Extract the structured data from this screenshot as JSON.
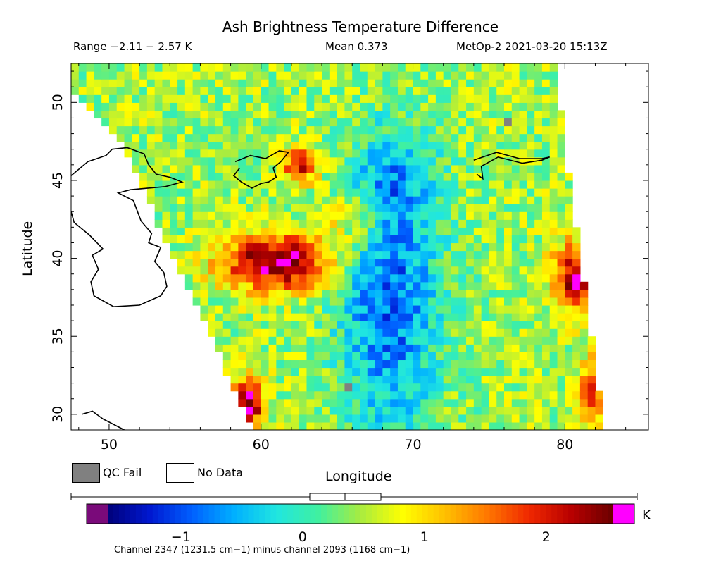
{
  "header": {
    "title": "Ash Brightness Temperature Difference",
    "range_text": "Range −2.11 − 2.57 K",
    "mean_text": "Mean 0.373",
    "satellite_text": "MetOp-2 2021-03-20 15:13Z"
  },
  "legend": {
    "qc_fail_label": "QC Fail",
    "no_data_label": "No Data",
    "qc_fail_color": "#808080",
    "no_data_color": "#ffffff"
  },
  "colorbar": {
    "caption": "Channel 2347 (1231.5 cm−1) minus channel 2093 (1168 cm−1)",
    "unit": "K",
    "min": -1.6,
    "max": 2.55,
    "ticks": [
      {
        "value": -1,
        "label": "−1"
      },
      {
        "value": 0,
        "label": "0"
      },
      {
        "value": 1,
        "label": "1"
      },
      {
        "value": 2,
        "label": "2"
      }
    ],
    "under_color": "#7a0a7a",
    "over_color": "#ff00ff",
    "colors": [
      "#00007a",
      "#0018d0",
      "#0060ff",
      "#00b0ff",
      "#20e6e0",
      "#40f0a0",
      "#a8ec40",
      "#ffff00",
      "#ffc000",
      "#ff7800",
      "#f02800",
      "#b80000",
      "#6a0000"
    ]
  },
  "chart_data": {
    "type": "heatmap",
    "title": "Ash Brightness Temperature Difference",
    "xlabel": "Longitude",
    "ylabel": "Latitude",
    "xlim": [
      47.5,
      85.5
    ],
    "ylim": [
      29.0,
      52.5
    ],
    "xticks": [
      50,
      60,
      70,
      80
    ],
    "yticks": [
      30,
      35,
      40,
      45,
      50
    ],
    "value_range": [
      -2.11,
      2.57
    ],
    "mean": 0.373,
    "units": "K",
    "swath": {
      "left_edge": [
        [
          47.5,
          50.7
        ],
        [
          51.0,
          47.0
        ],
        [
          59.5,
          29.0
        ]
      ],
      "right_edge": [
        [
          79.3,
          52.5
        ],
        [
          82.6,
          29.0
        ]
      ]
    },
    "grid": {
      "lon_step": 0.5,
      "lat_step": 0.5
    },
    "features": [
      {
        "name": "hotspot-west",
        "lon": 61.0,
        "lat": 39.8,
        "peak": 2.3,
        "sx": 2.6,
        "sy": 1.3
      },
      {
        "name": "hotspot-north",
        "lon": 62.6,
        "lat": 46.0,
        "peak": 1.8,
        "sx": 0.9,
        "sy": 0.8
      },
      {
        "name": "hotspot-east",
        "lon": 80.8,
        "lat": 38.8,
        "peak": 2.1,
        "sx": 1.1,
        "sy": 1.6
      },
      {
        "name": "hotspot-southwest",
        "lon": 59.2,
        "lat": 30.8,
        "peak": 2.3,
        "sx": 0.7,
        "sy": 1.2
      },
      {
        "name": "hotspot-southeast",
        "lon": 81.8,
        "lat": 31.5,
        "peak": 1.6,
        "sx": 0.7,
        "sy": 1.4
      },
      {
        "name": "warm-band-60lon",
        "lon": 66.0,
        "lat": 42.5,
        "peak": 0.8,
        "sx": 1.4,
        "sy": 1.3
      },
      {
        "name": "cold-trough",
        "lon": 68.5,
        "lat": 37.5,
        "peak": -1.3,
        "sx": 2.4,
        "sy": 6.5
      },
      {
        "name": "cold-north",
        "lon": 69.0,
        "lat": 45.5,
        "peak": -0.6,
        "sx": 1.8,
        "sy": 1.8
      }
    ],
    "background_value": 0.45,
    "noise_amplitude": 0.45,
    "qc_fail_cells": [
      [
        76.0,
        48.5
      ],
      [
        65.5,
        31.5
      ]
    ],
    "coastlines": {
      "caspian": [
        [
          47.5,
          45.3
        ],
        [
          48.6,
          46.2
        ],
        [
          49.8,
          46.6
        ],
        [
          50.2,
          47.0
        ],
        [
          51.2,
          47.1
        ],
        [
          52.3,
          46.7
        ],
        [
          52.6,
          46.0
        ],
        [
          53.1,
          45.4
        ],
        [
          54.0,
          45.2
        ],
        [
          54.8,
          44.9
        ],
        [
          53.7,
          44.6
        ],
        [
          51.4,
          44.4
        ],
        [
          50.6,
          44.2
        ],
        [
          51.6,
          43.7
        ],
        [
          52.1,
          42.4
        ],
        [
          52.8,
          41.6
        ],
        [
          52.6,
          41.0
        ],
        [
          53.4,
          40.7
        ],
        [
          53.0,
          39.8
        ],
        [
          53.6,
          39.1
        ],
        [
          53.8,
          38.2
        ],
        [
          53.4,
          37.6
        ],
        [
          52.0,
          37.0
        ],
        [
          50.3,
          36.9
        ],
        [
          49.0,
          37.6
        ],
        [
          48.8,
          38.5
        ],
        [
          49.3,
          39.3
        ],
        [
          48.9,
          40.2
        ],
        [
          49.6,
          40.6
        ],
        [
          48.7,
          41.5
        ],
        [
          47.7,
          42.3
        ],
        [
          47.5,
          43.0
        ]
      ],
      "aral": [
        [
          58.3,
          46.2
        ],
        [
          59.3,
          46.6
        ],
        [
          60.3,
          46.4
        ],
        [
          61.2,
          46.9
        ],
        [
          61.8,
          46.8
        ],
        [
          61.3,
          46.2
        ],
        [
          60.8,
          45.8
        ],
        [
          61.0,
          45.2
        ],
        [
          60.5,
          44.9
        ],
        [
          60.0,
          44.8
        ],
        [
          59.4,
          44.5
        ],
        [
          58.7,
          44.9
        ],
        [
          58.2,
          45.3
        ],
        [
          58.6,
          45.8
        ]
      ],
      "balkhash": [
        [
          74.0,
          46.3
        ],
        [
          75.5,
          46.8
        ],
        [
          77.0,
          46.4
        ],
        [
          78.5,
          46.4
        ],
        [
          79.0,
          46.5
        ],
        [
          78.5,
          46.3
        ],
        [
          77.2,
          46.1
        ],
        [
          75.6,
          46.5
        ],
        [
          74.5,
          45.9
        ],
        [
          74.6,
          45.1
        ],
        [
          74.2,
          45.4
        ]
      ],
      "gulf": [
        [
          48.2,
          30.0
        ],
        [
          48.9,
          30.2
        ],
        [
          49.6,
          29.7
        ],
        [
          50.2,
          29.4
        ],
        [
          51.0,
          29.0
        ]
      ]
    }
  }
}
